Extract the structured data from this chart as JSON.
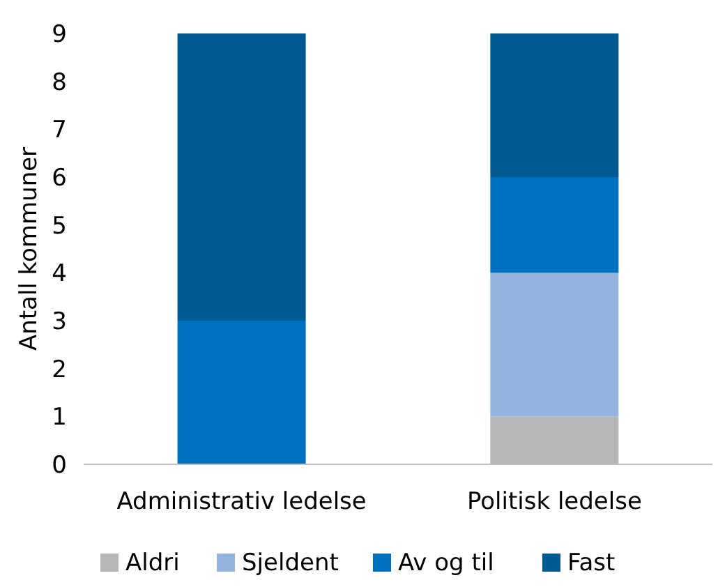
{
  "chart_data": {
    "type": "bar",
    "stacked": true,
    "ylabel": "Antall kommuner",
    "categories": [
      "Administrativ ledelse",
      "Politisk ledelse"
    ],
    "series": [
      {
        "name": "Aldri",
        "color": "#b7b7b7",
        "values": [
          0,
          1
        ]
      },
      {
        "name": "Sjeldent",
        "color": "#95b3df",
        "values": [
          0,
          3
        ]
      },
      {
        "name": "Av og til",
        "color": "#0070c0",
        "values": [
          3,
          2
        ]
      },
      {
        "name": "Fast",
        "color": "#005a92",
        "values": [
          6,
          3
        ]
      }
    ],
    "ylim": [
      0,
      9
    ],
    "yticks": [
      0,
      1,
      2,
      3,
      4,
      5,
      6,
      7,
      8,
      9
    ],
    "grid": false,
    "legend": "bottom"
  }
}
